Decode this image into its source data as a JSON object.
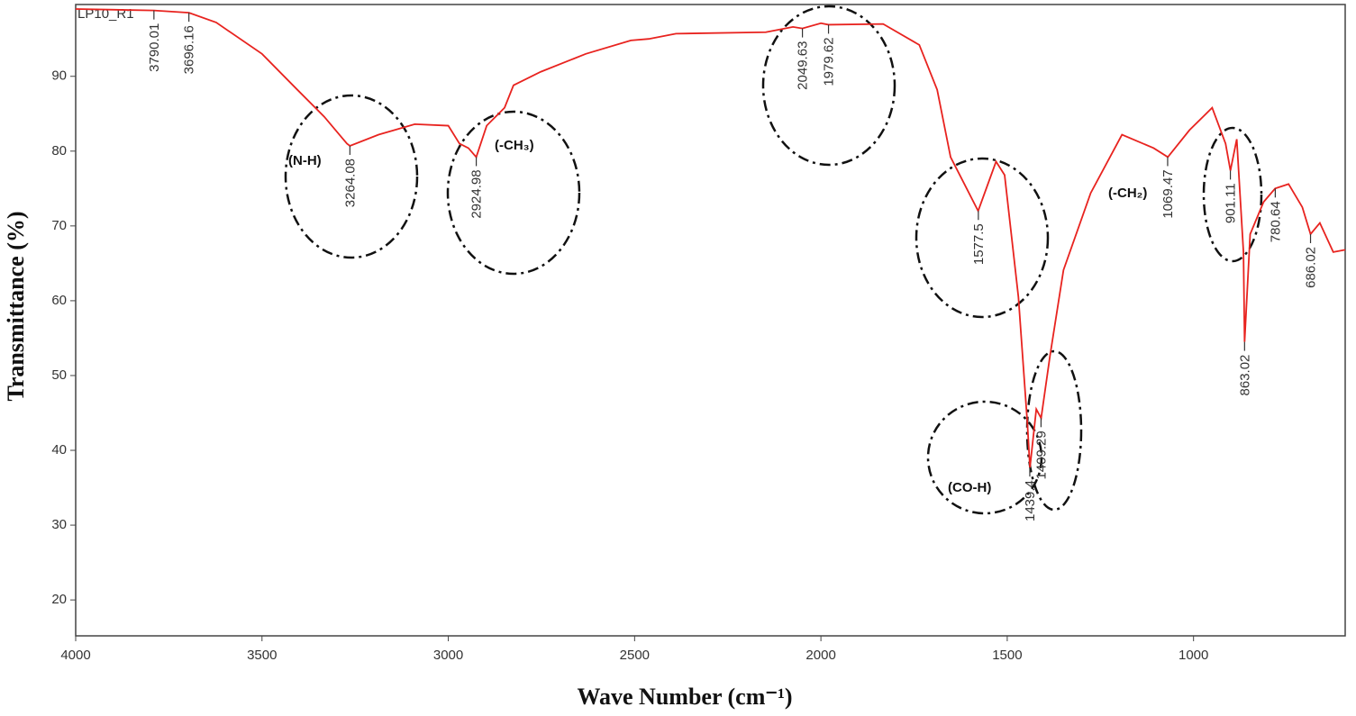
{
  "chart_data": {
    "type": "line",
    "xlabel": "Wave Number (cm⁻¹)",
    "ylabel": "Transmittance (%)",
    "sample_label": "LP10_R1",
    "xlim": [
      4000,
      593
    ],
    "ylim": [
      15.2,
      99.6
    ],
    "xticks": [
      4000,
      3500,
      3000,
      2500,
      2000,
      1500,
      1000
    ],
    "yticks": [
      20,
      30,
      40,
      50,
      60,
      70,
      80,
      90
    ],
    "series": [
      {
        "name": "LP10_R1",
        "color": "#e8231f",
        "x": [
          4000,
          3790,
          3696,
          3623,
          3500,
          3405,
          3333,
          3272,
          3264,
          3187,
          3090,
          3000,
          2970,
          2946,
          2925,
          2897,
          2849,
          2825,
          2752,
          2631,
          2510,
          2462,
          2389,
          2148,
          2075,
          2050,
          2000,
          1980,
          1833,
          1736,
          1688,
          1652,
          1615,
          1578,
          1530,
          1507,
          1470,
          1446,
          1439,
          1422,
          1409,
          1385,
          1349,
          1276,
          1192,
          1107,
          1069,
          1011,
          950,
          914,
          901,
          884,
          866,
          863,
          848,
          812,
          781,
          745,
          708,
          686,
          661,
          625,
          593
        ],
        "values": [
          99.0,
          98.8,
          98.5,
          97.2,
          93.0,
          88.2,
          84.6,
          81.0,
          80.7,
          82.2,
          83.6,
          83.4,
          81.0,
          80.4,
          79.2,
          83.4,
          85.8,
          88.8,
          90.6,
          93.0,
          94.8,
          95.0,
          95.7,
          95.9,
          96.6,
          96.4,
          97.1,
          96.9,
          97.0,
          94.2,
          88.2,
          79.2,
          75.6,
          72.0,
          78.6,
          76.8,
          60.5,
          43.7,
          37.7,
          45.5,
          44.3,
          52.7,
          64.1,
          74.4,
          82.2,
          80.4,
          79.2,
          82.8,
          85.8,
          81.0,
          77.4,
          81.6,
          66.5,
          54.5,
          68.9,
          73.2,
          75.0,
          75.6,
          72.5,
          68.9,
          70.4,
          66.5,
          66.8
        ]
      }
    ],
    "peaks": [
      {
        "x": 3790.01,
        "y": 98.8
      },
      {
        "x": 3696.16,
        "y": 98.5
      },
      {
        "x": 3264.08,
        "y": 80.7
      },
      {
        "x": 2924.98,
        "y": 79.2
      },
      {
        "x": 2049.63,
        "y": 96.4
      },
      {
        "x": 1979.62,
        "y": 96.9
      },
      {
        "x": 1577.5,
        "y": 72.0
      },
      {
        "x": 1439.4,
        "y": 37.7
      },
      {
        "x": 1409.29,
        "y": 44.3
      },
      {
        "x": 1069.47,
        "y": 79.2
      },
      {
        "x": 901.11,
        "y": 77.4
      },
      {
        "x": 863.02,
        "y": 54.5
      },
      {
        "x": 780.64,
        "y": 75.0
      },
      {
        "x": 686.02,
        "y": 68.9
      }
    ],
    "groups": [
      "(N-H)",
      "(-CH₃)",
      "(-CH₂)",
      "(CO-H)"
    ]
  }
}
